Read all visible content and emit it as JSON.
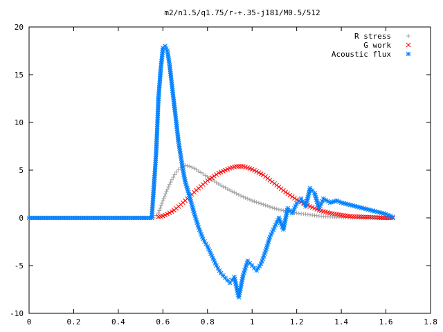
{
  "chart_data": {
    "type": "scatter",
    "title": "m2/n1.5/q1.75/r-+.35-j181/M0.5/512",
    "xlabel": "",
    "ylabel": "",
    "xlim": [
      0,
      1.8
    ],
    "ylim": [
      -10,
      20
    ],
    "xticks": [
      "0",
      "0.2",
      "0.4",
      "0.6",
      "0.8",
      "1",
      "1.2",
      "1.4",
      "1.6",
      "1.8"
    ],
    "yticks": [
      "20",
      "15",
      "10",
      "5",
      "0",
      "-5",
      "-10"
    ],
    "grid": false,
    "legend_position": "top-right",
    "series": [
      {
        "name": "R stress",
        "color": "#a0a0a0",
        "marker": "plus",
        "points": [
          [
            0,
            0
          ],
          [
            0.1,
            0
          ],
          [
            0.2,
            0
          ],
          [
            0.3,
            0
          ],
          [
            0.4,
            0
          ],
          [
            0.5,
            0
          ],
          [
            0.56,
            0
          ],
          [
            0.58,
            0.5
          ],
          [
            0.6,
            1.8
          ],
          [
            0.62,
            3.0
          ],
          [
            0.64,
            4.0
          ],
          [
            0.66,
            4.8
          ],
          [
            0.68,
            5.3
          ],
          [
            0.7,
            5.5
          ],
          [
            0.72,
            5.4
          ],
          [
            0.74,
            5.2
          ],
          [
            0.78,
            4.6
          ],
          [
            0.82,
            4.0
          ],
          [
            0.86,
            3.4
          ],
          [
            0.9,
            2.9
          ],
          [
            0.95,
            2.3
          ],
          [
            1.0,
            1.8
          ],
          [
            1.05,
            1.4
          ],
          [
            1.1,
            1.0
          ],
          [
            1.15,
            0.7
          ],
          [
            1.2,
            0.5
          ],
          [
            1.25,
            0.35
          ],
          [
            1.3,
            0.2
          ],
          [
            1.35,
            0.1
          ],
          [
            1.4,
            0.05
          ],
          [
            1.5,
            0.02
          ],
          [
            1.6,
            0
          ],
          [
            1.63,
            0
          ]
        ]
      },
      {
        "name": "G work",
        "color": "#ff0000",
        "marker": "cross",
        "points": [
          [
            0.58,
            0.1
          ],
          [
            0.6,
            0.2
          ],
          [
            0.62,
            0.4
          ],
          [
            0.65,
            0.8
          ],
          [
            0.7,
            1.8
          ],
          [
            0.75,
            2.9
          ],
          [
            0.8,
            3.9
          ],
          [
            0.85,
            4.7
          ],
          [
            0.9,
            5.2
          ],
          [
            0.93,
            5.4
          ],
          [
            0.96,
            5.4
          ],
          [
            1.0,
            5.1
          ],
          [
            1.05,
            4.5
          ],
          [
            1.1,
            3.6
          ],
          [
            1.15,
            2.7
          ],
          [
            1.2,
            1.9
          ],
          [
            1.25,
            1.3
          ],
          [
            1.3,
            0.8
          ],
          [
            1.35,
            0.5
          ],
          [
            1.4,
            0.3
          ],
          [
            1.45,
            0.15
          ],
          [
            1.5,
            0.1
          ],
          [
            1.55,
            0.05
          ],
          [
            1.6,
            0
          ],
          [
            1.63,
            0
          ]
        ]
      },
      {
        "name": "Acoustic flux",
        "color": "#0080ff",
        "marker": "star",
        "points": [
          [
            0,
            0
          ],
          [
            0.1,
            0
          ],
          [
            0.2,
            0
          ],
          [
            0.3,
            0
          ],
          [
            0.4,
            0
          ],
          [
            0.5,
            0
          ],
          [
            0.55,
            0
          ],
          [
            0.57,
            6.9
          ],
          [
            0.58,
            12.5
          ],
          [
            0.59,
            15.5
          ],
          [
            0.6,
            17.8
          ],
          [
            0.61,
            18.0
          ],
          [
            0.62,
            17.5
          ],
          [
            0.63,
            16.0
          ],
          [
            0.64,
            14.0
          ],
          [
            0.65,
            12.0
          ],
          [
            0.66,
            10.0
          ],
          [
            0.67,
            8.0
          ],
          [
            0.68,
            6.5
          ],
          [
            0.69,
            5.0
          ],
          [
            0.7,
            3.8
          ],
          [
            0.72,
            2.2
          ],
          [
            0.74,
            0.5
          ],
          [
            0.76,
            -1.0
          ],
          [
            0.78,
            -2.2
          ],
          [
            0.8,
            -3.0
          ],
          [
            0.82,
            -4.0
          ],
          [
            0.84,
            -5.0
          ],
          [
            0.86,
            -5.8
          ],
          [
            0.88,
            -6.3
          ],
          [
            0.9,
            -6.8
          ],
          [
            0.92,
            -6.2
          ],
          [
            0.94,
            -8.3
          ],
          [
            0.96,
            -6.0
          ],
          [
            0.98,
            -4.5
          ],
          [
            1.0,
            -5.0
          ],
          [
            1.02,
            -5.5
          ],
          [
            1.04,
            -4.8
          ],
          [
            1.06,
            -3.5
          ],
          [
            1.08,
            -2.0
          ],
          [
            1.1,
            -1.0
          ],
          [
            1.12,
            0.0
          ],
          [
            1.14,
            -1.2
          ],
          [
            1.16,
            1.0
          ],
          [
            1.18,
            0.5
          ],
          [
            1.2,
            1.5
          ],
          [
            1.22,
            2.0
          ],
          [
            1.24,
            1.2
          ],
          [
            1.26,
            3.1
          ],
          [
            1.28,
            2.6
          ],
          [
            1.3,
            1.0
          ],
          [
            1.32,
            2.0
          ],
          [
            1.35,
            1.6
          ],
          [
            1.38,
            1.8
          ],
          [
            1.4,
            1.6
          ],
          [
            1.45,
            1.3
          ],
          [
            1.5,
            1.0
          ],
          [
            1.55,
            0.7
          ],
          [
            1.6,
            0.4
          ],
          [
            1.63,
            0.1
          ]
        ]
      }
    ]
  }
}
